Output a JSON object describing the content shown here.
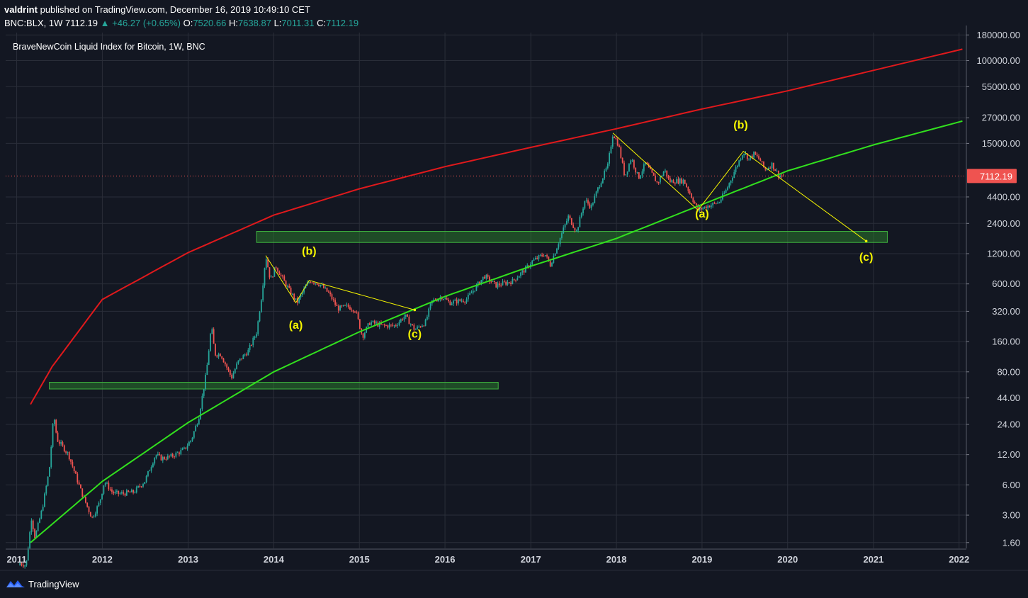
{
  "header": {
    "author": "valdrint",
    "published_text": "published on TradingView.com, December 16, 2019 10:49:10 CET",
    "symbol": "BNC:BLX, 1W",
    "last": "7112.19",
    "change": "▲ +46.27 (+0.65%)",
    "o_label": "O:",
    "o_val": "7520.66",
    "h_label": "H:",
    "h_val": "7638.87",
    "l_label": "L:",
    "l_val": "7011.31",
    "c_label": "C:",
    "c_val": "7112.19"
  },
  "pane_title": "BraveNewCoin Liquid Index for Bitcoin, 1W, BNC",
  "price_tag": "7112.19",
  "footer": {
    "brand": "TradingView"
  },
  "colors": {
    "background": "#131722",
    "up": "#26a69a",
    "down": "#ef5350",
    "upper_curve": "#e0191c",
    "lower_curve": "#32e01e",
    "annotations": "#f5f500",
    "zones": "#2e8b2e"
  },
  "chart_data": {
    "type": "candlestick",
    "scale": "log",
    "ylim": [
      1.4,
      190000
    ],
    "xlim": [
      "2010-11-15",
      "2022-02-01"
    ],
    "y_ticks": [
      "180000.00",
      "100000.00",
      "55000.00",
      "27000.00",
      "15000.00",
      "7112.19",
      "4400.00",
      "2400.00",
      "1200.00",
      "600.00",
      "320.00",
      "160.00",
      "80.00",
      "44.00",
      "24.00",
      "12.00",
      "6.00",
      "3.00",
      "1.60"
    ],
    "x_ticks": [
      "2011",
      "2012",
      "2013",
      "2014",
      "2015",
      "2016",
      "2017",
      "2018",
      "2019",
      "2020",
      "2021",
      "2022"
    ],
    "last_price": 7112.19,
    "price_path": [
      {
        "d": "2011-01-15",
        "v": 1.0
      },
      {
        "d": "2011-02-10",
        "v": 0.95
      },
      {
        "d": "2011-03-05",
        "v": 2.8
      },
      {
        "d": "2011-03-20",
        "v": 1.8
      },
      {
        "d": "2011-04-20",
        "v": 3.5
      },
      {
        "d": "2011-05-20",
        "v": 8.5
      },
      {
        "d": "2011-06-08",
        "v": 30
      },
      {
        "d": "2011-06-22",
        "v": 17
      },
      {
        "d": "2011-07-20",
        "v": 14
      },
      {
        "d": "2011-08-10",
        "v": 12
      },
      {
        "d": "2011-09-01",
        "v": 8.5
      },
      {
        "d": "2011-10-05",
        "v": 5
      },
      {
        "d": "2011-11-18",
        "v": 2.8
      },
      {
        "d": "2011-12-20",
        "v": 4
      },
      {
        "d": "2012-01-10",
        "v": 6.5
      },
      {
        "d": "2012-02-15",
        "v": 5
      },
      {
        "d": "2012-03-20",
        "v": 4.9
      },
      {
        "d": "2012-05-15",
        "v": 5.1
      },
      {
        "d": "2012-07-01",
        "v": 6.6
      },
      {
        "d": "2012-08-15",
        "v": 12
      },
      {
        "d": "2012-09-10",
        "v": 11
      },
      {
        "d": "2012-10-20",
        "v": 11.5
      },
      {
        "d": "2012-12-15",
        "v": 13.5
      },
      {
        "d": "2013-01-15",
        "v": 17
      },
      {
        "d": "2013-02-15",
        "v": 28
      },
      {
        "d": "2013-03-20",
        "v": 80
      },
      {
        "d": "2013-04-10",
        "v": 230
      },
      {
        "d": "2013-04-25",
        "v": 120
      },
      {
        "d": "2013-05-20",
        "v": 120
      },
      {
        "d": "2013-07-05",
        "v": 70
      },
      {
        "d": "2013-08-01",
        "v": 100
      },
      {
        "d": "2013-09-15",
        "v": 130
      },
      {
        "d": "2013-10-20",
        "v": 200
      },
      {
        "d": "2013-11-10",
        "v": 450
      },
      {
        "d": "2013-11-28",
        "v": 1150
      },
      {
        "d": "2013-12-18",
        "v": 650
      },
      {
        "d": "2014-01-10",
        "v": 900
      },
      {
        "d": "2014-02-20",
        "v": 600
      },
      {
        "d": "2014-04-10",
        "v": 390
      },
      {
        "d": "2014-05-20",
        "v": 580
      },
      {
        "d": "2014-06-05",
        "v": 650
      },
      {
        "d": "2014-07-15",
        "v": 600
      },
      {
        "d": "2014-08-25",
        "v": 480
      },
      {
        "d": "2014-10-01",
        "v": 340
      },
      {
        "d": "2014-11-10",
        "v": 360
      },
      {
        "d": "2014-12-15",
        "v": 330
      },
      {
        "d": "2015-01-14",
        "v": 180
      },
      {
        "d": "2015-02-15",
        "v": 250
      },
      {
        "d": "2015-04-10",
        "v": 230
      },
      {
        "d": "2015-06-01",
        "v": 230
      },
      {
        "d": "2015-07-15",
        "v": 290
      },
      {
        "d": "2015-08-25",
        "v": 210
      },
      {
        "d": "2015-10-10",
        "v": 250
      },
      {
        "d": "2015-11-05",
        "v": 400
      },
      {
        "d": "2015-12-20",
        "v": 450
      },
      {
        "d": "2016-01-20",
        "v": 390
      },
      {
        "d": "2016-04-01",
        "v": 420
      },
      {
        "d": "2016-06-17",
        "v": 720
      },
      {
        "d": "2016-08-05",
        "v": 580
      },
      {
        "d": "2016-10-15",
        "v": 640
      },
      {
        "d": "2016-12-20",
        "v": 890
      },
      {
        "d": "2017-01-05",
        "v": 1000
      },
      {
        "d": "2017-03-01",
        "v": 1200
      },
      {
        "d": "2017-03-25",
        "v": 930
      },
      {
        "d": "2017-05-20",
        "v": 2100
      },
      {
        "d": "2017-06-10",
        "v": 2800
      },
      {
        "d": "2017-07-15",
        "v": 2000
      },
      {
        "d": "2017-08-20",
        "v": 4100
      },
      {
        "d": "2017-09-15",
        "v": 3500
      },
      {
        "d": "2017-10-20",
        "v": 5800
      },
      {
        "d": "2017-11-25",
        "v": 9000
      },
      {
        "d": "2017-12-17",
        "v": 19000
      },
      {
        "d": "2018-01-10",
        "v": 14500
      },
      {
        "d": "2018-02-06",
        "v": 7000
      },
      {
        "d": "2018-03-05",
        "v": 10800
      },
      {
        "d": "2018-04-05",
        "v": 6800
      },
      {
        "d": "2018-05-05",
        "v": 9500
      },
      {
        "d": "2018-06-25",
        "v": 6000
      },
      {
        "d": "2018-07-25",
        "v": 8200
      },
      {
        "d": "2018-08-15",
        "v": 6300
      },
      {
        "d": "2018-10-15",
        "v": 6400
      },
      {
        "d": "2018-11-20",
        "v": 4300
      },
      {
        "d": "2018-12-15",
        "v": 3250
      },
      {
        "d": "2019-01-20",
        "v": 3550
      },
      {
        "d": "2019-03-15",
        "v": 3900
      },
      {
        "d": "2019-04-15",
        "v": 5200
      },
      {
        "d": "2019-05-20",
        "v": 8000
      },
      {
        "d": "2019-06-26",
        "v": 12500
      },
      {
        "d": "2019-07-20",
        "v": 10500
      },
      {
        "d": "2019-08-10",
        "v": 11800
      },
      {
        "d": "2019-09-05",
        "v": 10300
      },
      {
        "d": "2019-09-26",
        "v": 8200
      },
      {
        "d": "2019-10-26",
        "v": 9300
      },
      {
        "d": "2019-11-25",
        "v": 7200
      },
      {
        "d": "2019-12-16",
        "v": 7112.19
      }
    ],
    "upper_curve": [
      {
        "d": "2011-03-01",
        "v": 38
      },
      {
        "d": "2011-06-01",
        "v": 90
      },
      {
        "d": "2012-01-01",
        "v": 420
      },
      {
        "d": "2013-01-01",
        "v": 1230
      },
      {
        "d": "2014-01-01",
        "v": 2900
      },
      {
        "d": "2015-01-01",
        "v": 5300
      },
      {
        "d": "2016-01-01",
        "v": 8800
      },
      {
        "d": "2017-01-01",
        "v": 13700
      },
      {
        "d": "2018-01-01",
        "v": 21000
      },
      {
        "d": "2019-01-01",
        "v": 33000
      },
      {
        "d": "2020-01-01",
        "v": 50000
      },
      {
        "d": "2021-01-01",
        "v": 80000
      },
      {
        "d": "2022-01-15",
        "v": 130000
      }
    ],
    "lower_curve": [
      {
        "d": "2011-03-01",
        "v": 1.6
      },
      {
        "d": "2012-01-01",
        "v": 6.5
      },
      {
        "d": "2013-01-01",
        "v": 25
      },
      {
        "d": "2014-01-01",
        "v": 80
      },
      {
        "d": "2015-01-01",
        "v": 200
      },
      {
        "d": "2016-01-01",
        "v": 450
      },
      {
        "d": "2017-01-01",
        "v": 900
      },
      {
        "d": "2018-01-01",
        "v": 1700
      },
      {
        "d": "2019-01-01",
        "v": 3700
      },
      {
        "d": "2020-01-01",
        "v": 8000
      },
      {
        "d": "2021-01-01",
        "v": 14500
      },
      {
        "d": "2022-01-15",
        "v": 25000
      }
    ],
    "zones": [
      {
        "from": "2011-05-20",
        "to": "2016-08-15",
        "low": 54,
        "high": 63
      },
      {
        "from": "2013-10-20",
        "to": "2021-03-01",
        "low": 1550,
        "high": 2000
      }
    ],
    "waves": [
      {
        "points": [
          {
            "d": "2013-11-28",
            "v": 1150
          },
          {
            "d": "2014-04-05",
            "v": 390
          },
          {
            "d": "2014-06-01",
            "v": 650
          },
          {
            "d": "2015-08-25",
            "v": 330
          }
        ]
      },
      {
        "points": [
          {
            "d": "2017-12-17",
            "v": 19000
          },
          {
            "d": "2018-12-15",
            "v": 3250
          },
          {
            "d": "2019-06-26",
            "v": 12500
          },
          {
            "d": "2020-12-01",
            "v": 1600
          }
        ]
      }
    ],
    "annotations": [
      {
        "text": "(a)",
        "d": "2014-04-05",
        "v": 215
      },
      {
        "text": "(b)",
        "d": "2014-06-01",
        "v": 1170
      },
      {
        "text": "(c)",
        "d": "2015-08-25",
        "v": 175
      },
      {
        "text": "(a)",
        "d": "2019-01-01",
        "v": 2750
      },
      {
        "text": "(b)",
        "d": "2019-06-15",
        "v": 21000
      },
      {
        "text": "(c)",
        "d": "2020-12-01",
        "v": 1020
      }
    ]
  }
}
